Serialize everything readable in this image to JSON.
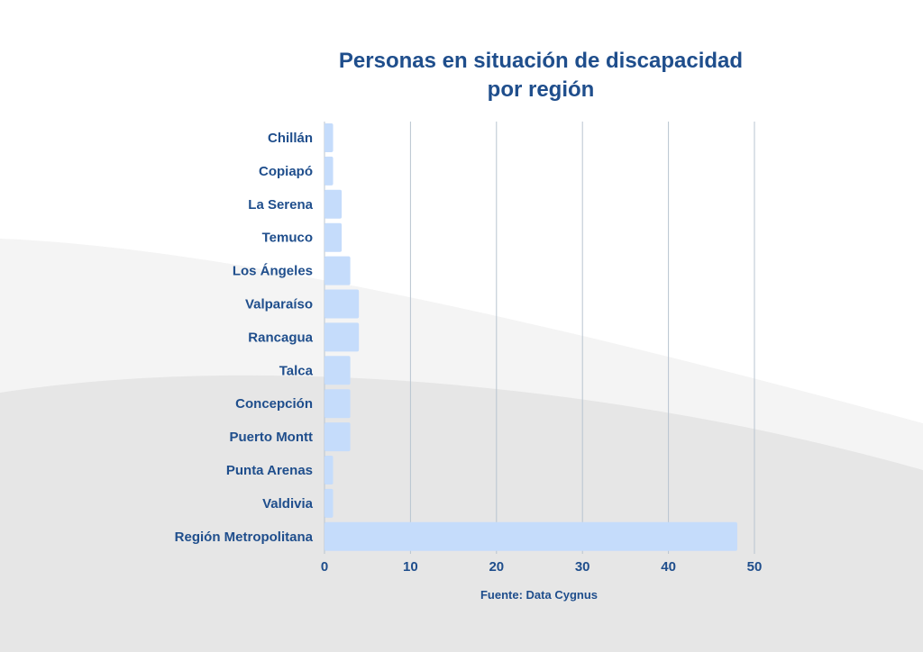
{
  "chart_data": {
    "type": "bar",
    "orientation": "horizontal",
    "title": "Personas en situación de discapacidad por región",
    "title_lines": [
      "Personas en situación de discapacidad",
      "por región"
    ],
    "categories": [
      "Chillán",
      "Copiapó",
      "La Serena",
      "Temuco",
      "Los Ángeles",
      "Valparaíso",
      "Rancagua",
      "Talca",
      "Concepción",
      "Puerto Montt",
      "Punta Arenas",
      "Valdivia",
      "Región Metropolitana"
    ],
    "values": [
      1,
      1,
      2,
      2,
      3,
      4,
      4,
      3,
      3,
      3,
      1,
      1,
      48
    ],
    "xlim": [
      0,
      50
    ],
    "xticks": [
      0,
      10,
      20,
      30,
      40,
      50
    ],
    "grid": true,
    "xlabel": "",
    "ylabel": "",
    "source": "Fuente: Data Cygnus"
  },
  "colors": {
    "bar": "#c5dcfb",
    "text": "#1f4e8c",
    "grid": "#b8c4d0",
    "background_wave_light": "#f4f4f4",
    "background_wave_dark": "#e6e6e6"
  }
}
